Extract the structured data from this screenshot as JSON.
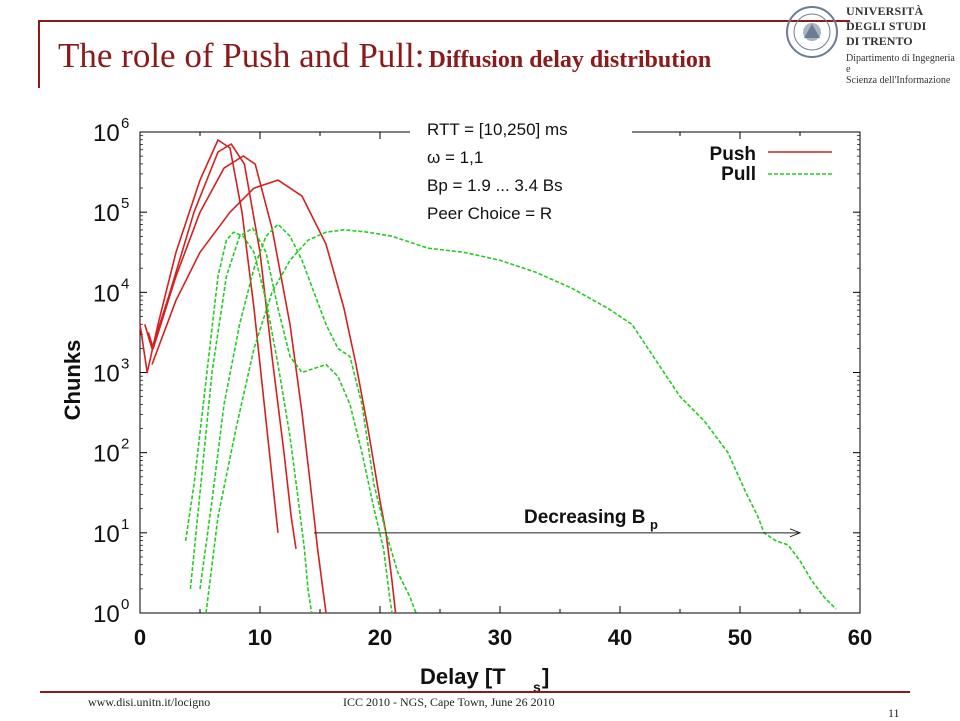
{
  "slide": {
    "title_main": "The role of Push and Pull:",
    "title_sub": "Diffusion delay distribution",
    "logo": {
      "line1": "UNIVERSITÀ DEGLI STUDI",
      "line2": "DI TRENTO",
      "line3": "Dipartimento di Ingegneria e",
      "line4": "Scienza dell'Informazione"
    },
    "footer": {
      "url": "www.disi.unitn.it/locigno",
      "conference": "ICC 2010 - NGS, Cape Town, June 26 2010",
      "page": "11"
    }
  },
  "colors": {
    "accent": "#8b1a1a",
    "push": "#d42020",
    "pull": "#22cc22"
  },
  "chart_data": {
    "type": "line",
    "xlabel": "Delay [T",
    "xlabel_sub": "s",
    "xlabel_end": "]",
    "ylabel": "Chunks",
    "xlim": [
      0,
      60
    ],
    "ylim_log10": [
      0,
      6
    ],
    "y_scale": "log",
    "x_ticks": [
      "0",
      "10",
      "20",
      "30",
      "40",
      "50",
      "60"
    ],
    "y_ticks": [
      {
        "base": "10",
        "exp": "0"
      },
      {
        "base": "10",
        "exp": "1"
      },
      {
        "base": "10",
        "exp": "2"
      },
      {
        "base": "10",
        "exp": "3"
      },
      {
        "base": "10",
        "exp": "4"
      },
      {
        "base": "10",
        "exp": "5"
      },
      {
        "base": "10",
        "exp": "6"
      }
    ],
    "params": [
      "RTT = [10,250] ms",
      "ω = 1,1",
      "Bp = 1.9 ... 3.4 Bs",
      "Peer Choice = R"
    ],
    "legend": {
      "position": "top-right",
      "entries": [
        {
          "label": "Push",
          "style": "solid"
        },
        {
          "label": "Pull",
          "style": "dashed"
        }
      ]
    },
    "annotation": {
      "text": "Decreasing B",
      "sub": "p",
      "from_x": 14.5,
      "to_x": 55,
      "y_log10": 1.0
    },
    "series": [
      {
        "group": "push",
        "points": [
          [
            0,
            3.6
          ],
          [
            0.6,
            3.0
          ],
          [
            1.5,
            3.6
          ],
          [
            3,
            4.5
          ],
          [
            5,
            5.4
          ],
          [
            6.5,
            5.9
          ],
          [
            7.5,
            5.8
          ],
          [
            8.5,
            5.0
          ],
          [
            9.5,
            3.8
          ],
          [
            10.5,
            2.4
          ],
          [
            11.5,
            1.0
          ]
        ]
      },
      {
        "group": "push",
        "points": [
          [
            0.4,
            3.6
          ],
          [
            1,
            3.3
          ],
          [
            2.5,
            4.0
          ],
          [
            4.5,
            5.0
          ],
          [
            6.5,
            5.75
          ],
          [
            7.6,
            5.85
          ],
          [
            8.7,
            5.6
          ],
          [
            10,
            4.5
          ],
          [
            11,
            3.2
          ],
          [
            12,
            2.0
          ],
          [
            12.6,
            1.2
          ],
          [
            13,
            0.8
          ]
        ]
      },
      {
        "group": "push",
        "points": [
          [
            0.7,
            3.5
          ],
          [
            1.1,
            3.3
          ],
          [
            3,
            4.2
          ],
          [
            5,
            5.0
          ],
          [
            7,
            5.55
          ],
          [
            8.6,
            5.7
          ],
          [
            9.6,
            5.6
          ],
          [
            11,
            4.8
          ],
          [
            12.5,
            3.6
          ],
          [
            13.5,
            2.5
          ],
          [
            14.2,
            1.6
          ],
          [
            14.8,
            0.8
          ],
          [
            15.5,
            0
          ]
        ]
      },
      {
        "group": "push",
        "points": [
          [
            1,
            3.1
          ],
          [
            3,
            3.9
          ],
          [
            5,
            4.5
          ],
          [
            7.5,
            5.0
          ],
          [
            9.5,
            5.3
          ],
          [
            11.5,
            5.4
          ],
          [
            13.5,
            5.2
          ],
          [
            15.5,
            4.6
          ],
          [
            17,
            3.8
          ],
          [
            18,
            3.1
          ],
          [
            19,
            2.3
          ],
          [
            20,
            1.4
          ],
          [
            20.5,
            1.0
          ],
          [
            21,
            0.4
          ],
          [
            21.3,
            0
          ]
        ]
      },
      {
        "group": "pull",
        "points": [
          [
            3.8,
            0.9
          ],
          [
            4.5,
            1.6
          ],
          [
            5.5,
            2.9
          ],
          [
            6.5,
            4.2
          ],
          [
            7.2,
            4.65
          ],
          [
            7.8,
            4.75
          ],
          [
            8.6,
            4.7
          ],
          [
            9.5,
            4.5
          ],
          [
            10.5,
            3.9
          ],
          [
            11.5,
            3.1
          ],
          [
            12.5,
            2.2
          ],
          [
            13.2,
            1.4
          ],
          [
            13.7,
            0.8
          ],
          [
            14,
            0.3
          ],
          [
            14.3,
            0
          ]
        ]
      },
      {
        "group": "pull",
        "points": [
          [
            4.2,
            0.3
          ],
          [
            5,
            1.5
          ],
          [
            6,
            3.0
          ],
          [
            7.2,
            4.2
          ],
          [
            8.3,
            4.7
          ],
          [
            9.4,
            4.8
          ],
          [
            10.5,
            4.5
          ],
          [
            11.5,
            3.8
          ],
          [
            12.5,
            3.2
          ],
          [
            13.5,
            3.0
          ],
          [
            14.5,
            3.05
          ],
          [
            15.5,
            3.1
          ],
          [
            16.5,
            2.95
          ],
          [
            17.5,
            2.6
          ],
          [
            18.5,
            2.0
          ],
          [
            19.5,
            1.3
          ],
          [
            20.3,
            0.8
          ],
          [
            20.8,
            0.2
          ],
          [
            21,
            0
          ]
        ]
      },
      {
        "group": "pull",
        "points": [
          [
            5,
            0.3
          ],
          [
            6,
            1.4
          ],
          [
            7,
            2.6
          ],
          [
            8.3,
            3.6
          ],
          [
            9.5,
            4.3
          ],
          [
            10.5,
            4.7
          ],
          [
            11.5,
            4.85
          ],
          [
            12.5,
            4.7
          ],
          [
            13.5,
            4.4
          ],
          [
            14.5,
            4.0
          ],
          [
            15.5,
            3.6
          ],
          [
            16.5,
            3.3
          ],
          [
            17.5,
            3.2
          ],
          [
            18.5,
            2.6
          ],
          [
            19.5,
            1.6
          ],
          [
            20.5,
            1.0
          ],
          [
            21.5,
            0.5
          ],
          [
            22.5,
            0.2
          ],
          [
            23,
            0
          ]
        ]
      },
      {
        "group": "pull",
        "points": [
          [
            5.5,
            0
          ],
          [
            6.5,
            1.2
          ],
          [
            8,
            2.3
          ],
          [
            9.5,
            3.3
          ],
          [
            11,
            4.0
          ],
          [
            12.5,
            4.4
          ],
          [
            14,
            4.65
          ],
          [
            15.5,
            4.75
          ],
          [
            17,
            4.78
          ],
          [
            19,
            4.75
          ],
          [
            21,
            4.7
          ],
          [
            24,
            4.55
          ],
          [
            27,
            4.5
          ],
          [
            30,
            4.4
          ],
          [
            33,
            4.25
          ],
          [
            36,
            4.05
          ],
          [
            39,
            3.8
          ],
          [
            41,
            3.6
          ],
          [
            43,
            3.15
          ],
          [
            45,
            2.7
          ],
          [
            47,
            2.4
          ],
          [
            49,
            2.0
          ],
          [
            50.5,
            1.5
          ],
          [
            51.5,
            1.2
          ],
          [
            52,
            1.0
          ],
          [
            53,
            0.9
          ],
          [
            54,
            0.85
          ],
          [
            55,
            0.65
          ],
          [
            56,
            0.4
          ],
          [
            57,
            0.2
          ],
          [
            58,
            0.05
          ]
        ]
      }
    ]
  }
}
